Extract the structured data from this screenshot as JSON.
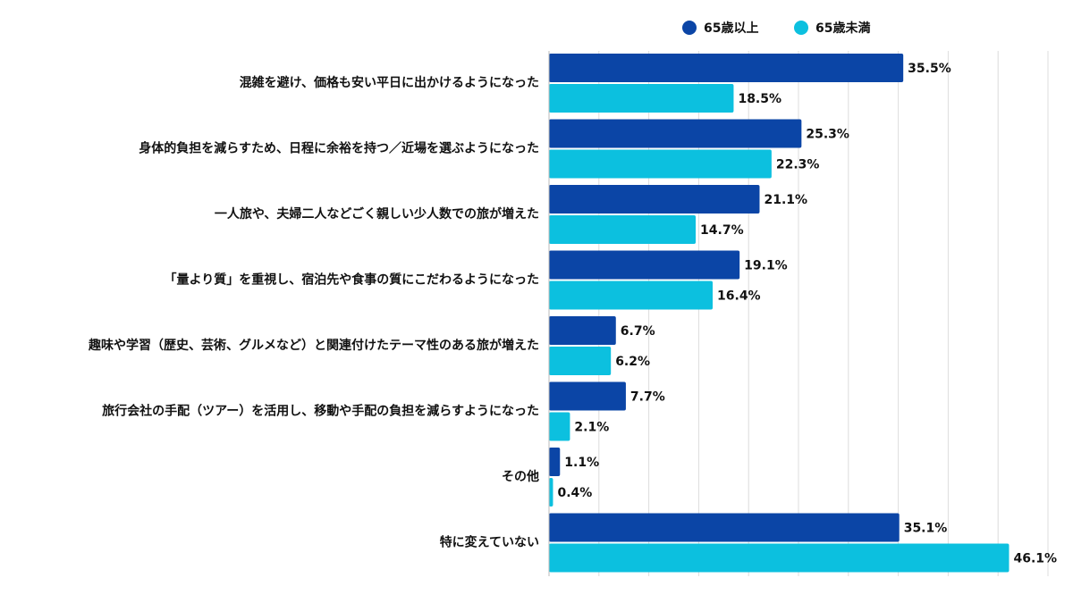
{
  "chart_data": {
    "type": "hbar",
    "categories": [
      "混雑を避け、価格も安い平日に出かけるようになった",
      "身体的負担を減らすため、日程に余裕を持つ／近場を選ぶようになった",
      "一人旅や、夫婦二人などごく親しい少人数での旅が増えた",
      "「量より質」を重視し、宿泊先や食事の質にこだわるようになった",
      "趣味や学習（歴史、芸術、グルメなど）と関連付けたテーマ性のある旅が増えた",
      "旅行会社の手配（ツアー）を活用し、移動や手配の負担を減らすようになった",
      "その他",
      "特に変えていない"
    ],
    "series": [
      {
        "name": "65歳以上",
        "color": "#0b45a6",
        "values": [
          35.5,
          25.3,
          21.1,
          19.1,
          6.7,
          7.7,
          1.1,
          35.1
        ],
        "value_labels": [
          "35.5%",
          "25.3%",
          "21.1%",
          "19.1%",
          "6.7%",
          "7.7%",
          "1.1%",
          "35.1%"
        ]
      },
      {
        "name": "65歳未満",
        "color": "#0cc0df",
        "values": [
          18.5,
          22.3,
          14.7,
          16.4,
          6.2,
          2.1,
          0.4,
          46.1
        ],
        "value_labels": [
          "18.5%",
          "22.3%",
          "14.7%",
          "16.4%",
          "6.2%",
          "2.1%",
          "0.4%",
          "46.1%"
        ]
      }
    ],
    "xlim": [
      0,
      50
    ],
    "xticks": [
      0,
      5,
      10,
      15,
      20,
      25,
      30,
      35,
      40,
      45,
      50
    ],
    "grid": true,
    "legend": "top"
  }
}
